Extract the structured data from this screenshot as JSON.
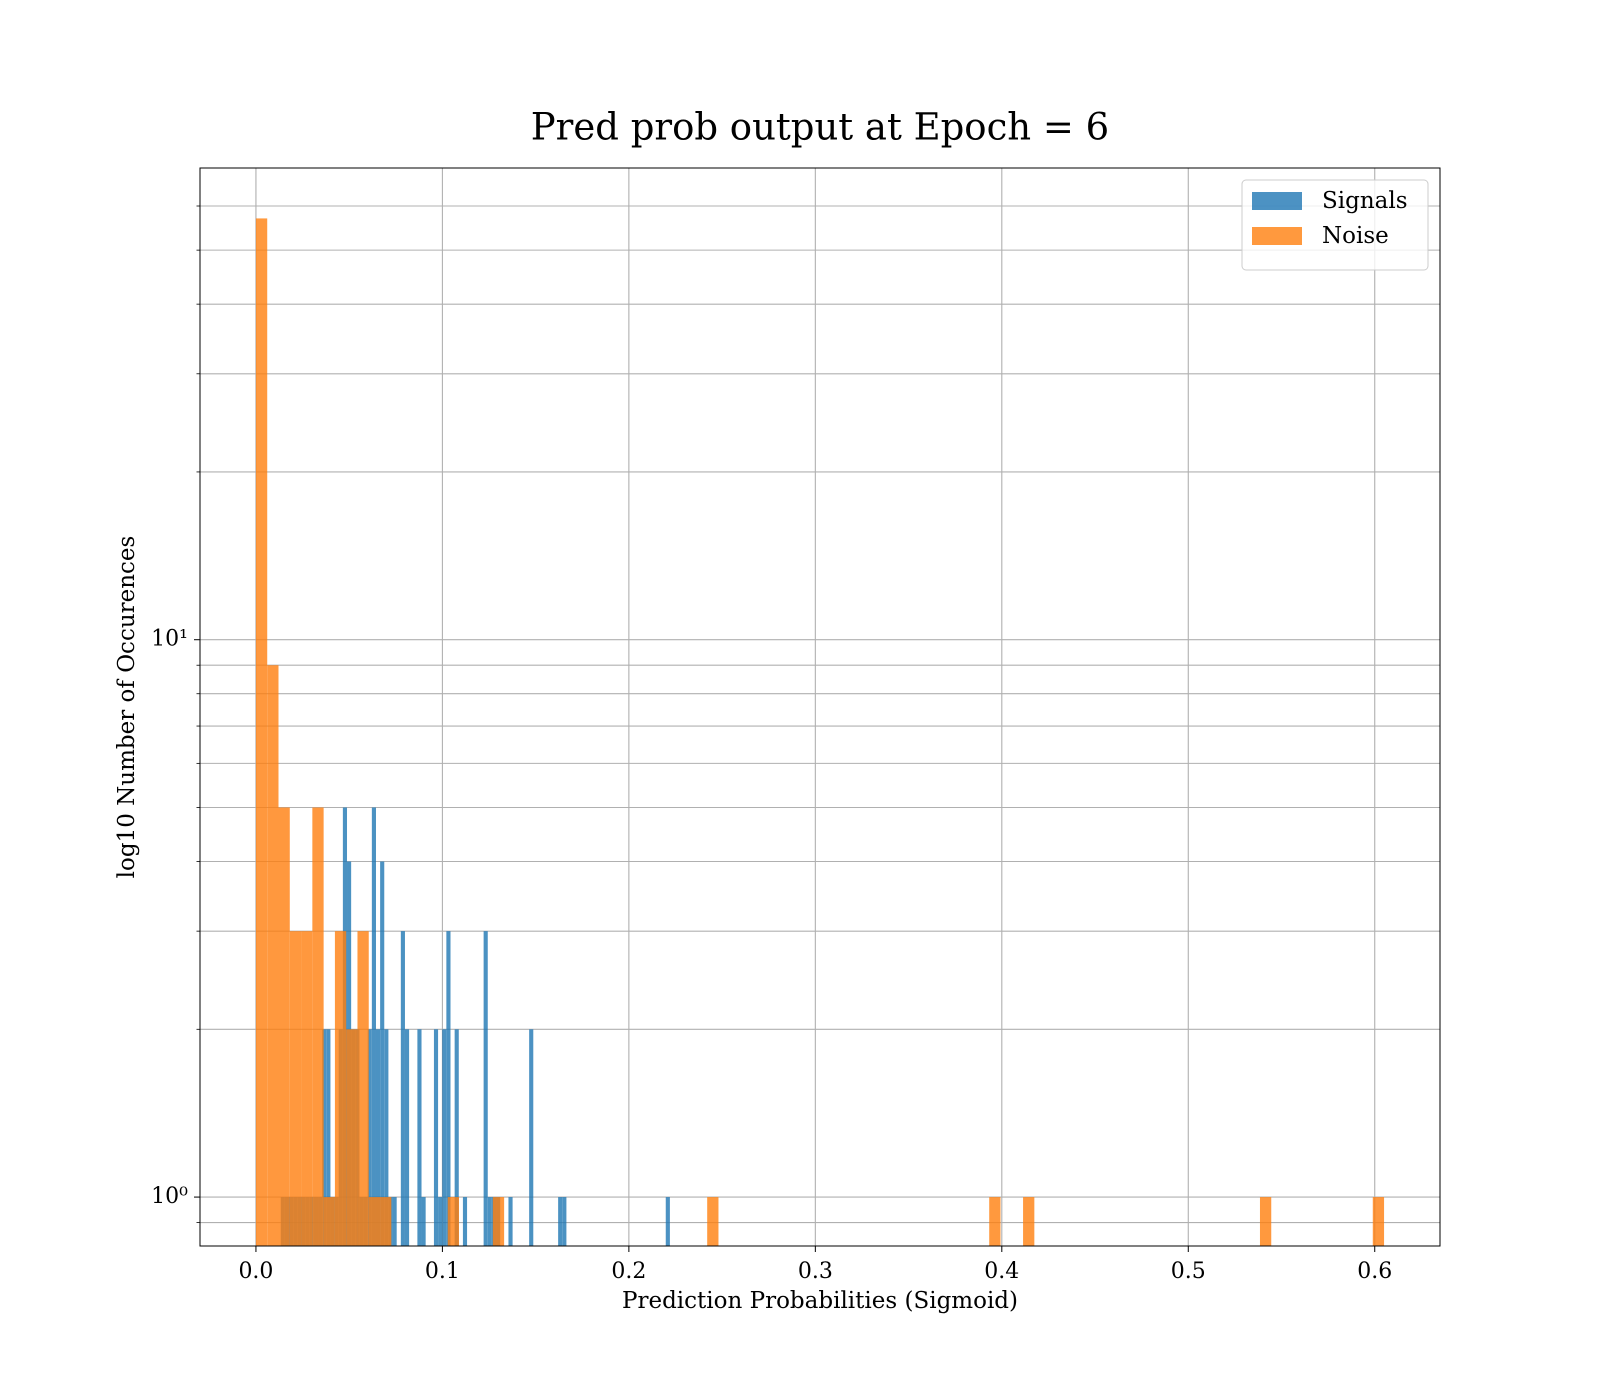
{
  "chart_data": {
    "type": "histogram",
    "title": "Pred prob output at Epoch = 6",
    "xlabel": "Prediction Probabilities (Sigmoid)",
    "ylabel": "log10 Number of Occurences",
    "yscale": "log",
    "grid": true,
    "legend": "upper right",
    "xlim": [
      -0.03,
      0.635
    ],
    "ylim": [
      0.817,
      70.2
    ],
    "xticks": [
      {
        "value": 0,
        "label": "0.0"
      },
      0.1,
      0.2,
      0.3,
      0.4,
      0.5,
      0.6
    ],
    "yticks": [
      {
        "value": 1,
        "label": "10⁰"
      },
      {
        "value": 10,
        "label": "10¹"
      }
    ],
    "yminorticks": [
      0.9,
      2,
      3,
      4,
      5,
      6,
      7,
      8,
      9,
      20,
      30,
      40,
      50,
      60
    ],
    "series": [
      {
        "name": "Signals",
        "color": "#1f77b4",
        "opacity": 0.8,
        "bins": [
          0,
          0.00222,
          0.00444,
          0.00666,
          0.00888,
          0.0111,
          0.01332,
          0.01554,
          0.01776,
          0.01998,
          0.0222,
          0.02442,
          0.02664,
          0.02886,
          0.03108,
          0.0333,
          0.03552,
          0.03774,
          0.03996,
          0.04218,
          0.0444,
          0.04662,
          0.04884,
          0.05106,
          0.05328,
          0.0555,
          0.05772,
          0.05994,
          0.06216,
          0.06438,
          0.0666,
          0.06882,
          0.07104,
          0.07326,
          0.07548,
          0.0777,
          0.07992,
          0.08214,
          0.08436,
          0.08658,
          0.0888,
          0.09102,
          0.09324,
          0.09546,
          0.09768,
          0.0999,
          0.10212,
          0.10434,
          0.10656,
          0.10878,
          0.111,
          0.11322,
          0.11544,
          0.11766,
          0.11988,
          0.1221,
          0.12432,
          0.12654,
          0.12876,
          0.13098,
          0.1332,
          0.13542,
          0.13764,
          0.13986,
          0.14208,
          0.1443,
          0.14652,
          0.14874,
          0.15096,
          0.15318,
          0.1554,
          0.15762,
          0.15984,
          0.16206,
          0.16428,
          0.1665,
          0.16872,
          0.17094,
          0.17316,
          0.17538,
          0.1776,
          0.17982,
          0.18204,
          0.18426,
          0.18648,
          0.1887,
          0.19092,
          0.19314,
          0.19536,
          0.19758,
          0.1998,
          0.20202,
          0.20424,
          0.20646,
          0.20868,
          0.2109,
          0.21312,
          0.21534,
          0.21756,
          0.21978,
          0.222
        ],
        "values": [
          0,
          0,
          0,
          0,
          0,
          0,
          1,
          1,
          1,
          1,
          1,
          1,
          1,
          1,
          1,
          1,
          2,
          2,
          1,
          1,
          2,
          5,
          4,
          2,
          2,
          1,
          1,
          2,
          5,
          2,
          4,
          2,
          1,
          1,
          0,
          3,
          2,
          0,
          0,
          2,
          1,
          0,
          0,
          2,
          1,
          2,
          3,
          0,
          2,
          0,
          1,
          0,
          0,
          0,
          0,
          3,
          1,
          1,
          1,
          0,
          0,
          1,
          0,
          0,
          0,
          0,
          2,
          0,
          0,
          0,
          0,
          0,
          0,
          1,
          1,
          0,
          0,
          0,
          0,
          0,
          0,
          0,
          0,
          0,
          0,
          0,
          0,
          0,
          0,
          0,
          0,
          0,
          0,
          0,
          0,
          0,
          0,
          0,
          0,
          1
        ]
      },
      {
        "name": "Noise",
        "color": "#ff7f0e",
        "opacity": 0.8,
        "bins": [
          0,
          0.00605,
          0.0121,
          0.01815,
          0.0242,
          0.03025,
          0.0363,
          0.04235,
          0.0484,
          0.05445,
          0.0605,
          0.06655,
          0.0726,
          0.07865,
          0.0847,
          0.09075,
          0.0968,
          0.10285,
          0.1089,
          0.11495,
          0.121,
          0.12705,
          0.1331,
          0.13915,
          0.1452,
          0.15125,
          0.1573,
          0.16335,
          0.1694,
          0.17545,
          0.1815,
          0.18755,
          0.1936,
          0.19965,
          0.2057,
          0.21175,
          0.2178,
          0.22385,
          0.2299,
          0.23595,
          0.242,
          0.24805,
          0.2541,
          0.26015,
          0.2662,
          0.27225,
          0.2783,
          0.28435,
          0.2904,
          0.29645,
          0.3025,
          0.30855,
          0.3146,
          0.32065,
          0.3267,
          0.33275,
          0.3388,
          0.34485,
          0.3509,
          0.35695,
          0.363,
          0.36905,
          0.3751,
          0.38115,
          0.3872,
          0.39325,
          0.3993,
          0.40535,
          0.4114,
          0.41745,
          0.4235,
          0.42955,
          0.4356,
          0.44165,
          0.4477,
          0.45375,
          0.4598,
          0.46585,
          0.4719,
          0.47795,
          0.484,
          0.49005,
          0.4961,
          0.50215,
          0.5082,
          0.51425,
          0.5203,
          0.52635,
          0.5324,
          0.53845,
          0.5445,
          0.55055,
          0.5566,
          0.56265,
          0.5687,
          0.57475,
          0.5808,
          0.58685,
          0.5929,
          0.59895,
          0.605
        ],
        "values": [
          57,
          9,
          5,
          3,
          3,
          5,
          1,
          3,
          2,
          3,
          1,
          1,
          0,
          0,
          0,
          0,
          0,
          1,
          0,
          0,
          0,
          1,
          0,
          0,
          0,
          0,
          0,
          0,
          0,
          0,
          0,
          0,
          0,
          0,
          0,
          0,
          0,
          0,
          0,
          0,
          1,
          0,
          0,
          0,
          0,
          0,
          0,
          0,
          0,
          0,
          0,
          0,
          0,
          0,
          0,
          0,
          0,
          0,
          0,
          0,
          0,
          0,
          0,
          0,
          0,
          1,
          0,
          0,
          1,
          0,
          0,
          0,
          0,
          0,
          0,
          0,
          0,
          0,
          0,
          0,
          0,
          0,
          0,
          0,
          0,
          0,
          0,
          0,
          0,
          1,
          0,
          0,
          0,
          0,
          0,
          0,
          0,
          0,
          0,
          1
        ]
      }
    ]
  }
}
